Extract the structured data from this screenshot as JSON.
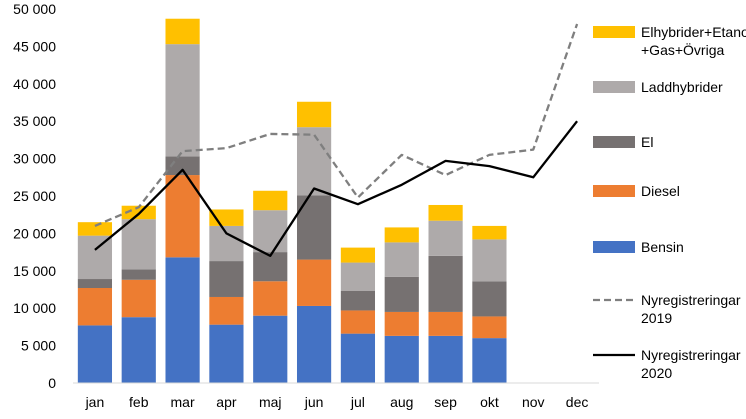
{
  "chart_data": {
    "type": "bar",
    "stacked": true,
    "categories": [
      "jan",
      "feb",
      "mar",
      "apr",
      "maj",
      "jun",
      "jul",
      "aug",
      "sep",
      "okt",
      "nov",
      "dec"
    ],
    "ylim": [
      0,
      50000
    ],
    "y_ticks": [
      {
        "value": 0,
        "label": "0"
      },
      {
        "value": 5000,
        "label": "5 000"
      },
      {
        "value": 10000,
        "label": "10 000"
      },
      {
        "value": 15000,
        "label": "15 000"
      },
      {
        "value": 20000,
        "label": "20 000"
      },
      {
        "value": 25000,
        "label": "25 000"
      },
      {
        "value": 30000,
        "label": "30 000"
      },
      {
        "value": 35000,
        "label": "35 000"
      },
      {
        "value": 40000,
        "label": "40 000"
      },
      {
        "value": 45000,
        "label": "45 000"
      },
      {
        "value": 50000,
        "label": "50 000"
      }
    ],
    "grid": false,
    "legend_position": "right",
    "series": [
      {
        "name": "Bensin",
        "color": "#4472C4",
        "values": [
          7700,
          8800,
          16800,
          7800,
          9000,
          10300,
          6600,
          6300,
          6300,
          6000,
          null,
          null
        ]
      },
      {
        "name": "Diesel",
        "color": "#ED7D31",
        "values": [
          5000,
          5000,
          11000,
          3700,
          4600,
          6200,
          3100,
          3200,
          3200,
          2900,
          null,
          null
        ]
      },
      {
        "name": "El",
        "color": "#767171",
        "values": [
          1200,
          1400,
          2500,
          4800,
          3900,
          8600,
          2600,
          4700,
          7500,
          4700,
          null,
          null
        ]
      },
      {
        "name": "Laddhybrider",
        "color": "#AEAAAA",
        "values": [
          5800,
          6700,
          15000,
          4700,
          5600,
          9100,
          3800,
          4600,
          4700,
          5600,
          null,
          null
        ]
      },
      {
        "name_lines": [
          "Elhybrider+Etanol",
          "+Gas+Övriga"
        ],
        "color": "#FFC000",
        "values": [
          1800,
          1800,
          3400,
          2200,
          2600,
          3400,
          2000,
          2000,
          2100,
          1800,
          null,
          null
        ]
      }
    ],
    "lines": [
      {
        "name_lines": [
          "Nyregistreringar",
          "2019"
        ],
        "color": "#7F7F7F",
        "dash": true,
        "values": [
          21000,
          23500,
          31000,
          31400,
          33300,
          33200,
          24800,
          30500,
          27800,
          30500,
          31200,
          48000
        ]
      },
      {
        "name_lines": [
          "Nyregistreringar",
          "2020"
        ],
        "color": "#000000",
        "dash": false,
        "values": [
          17800,
          22600,
          28500,
          20000,
          17000,
          26000,
          23900,
          26500,
          29700,
          29000,
          27500,
          35000
        ]
      }
    ]
  }
}
